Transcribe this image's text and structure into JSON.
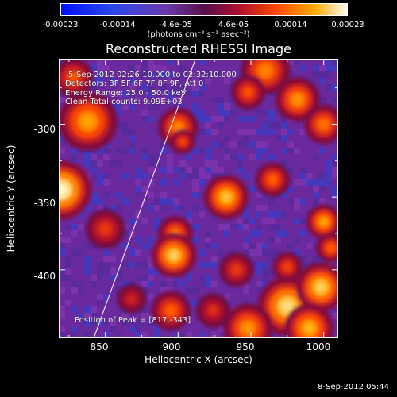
{
  "colorbar": {
    "ticks": [
      "-0.00023",
      "-0.00014",
      "-4.6e-05",
      "4.6e-05",
      "0.00014",
      "0.00023"
    ],
    "units": "(photons cm⁻² s⁻¹ asec⁻²)"
  },
  "chart_data": {
    "type": "heatmap",
    "title": "Reconstructed RHESSI Image",
    "xlabel": "Heliocentric X (arcsec)",
    "ylabel": "Heliocentric Y (arcsec)",
    "xlim": [
      818,
      1010
    ],
    "ylim": [
      -447,
      -255
    ],
    "x_ticks": [
      "850",
      "900",
      "950",
      "1000"
    ],
    "y_ticks": [
      "-300",
      "-350",
      "-400"
    ],
    "colorbar_range": [
      -0.00023,
      0.00023
    ],
    "annotations": {
      "time": "5-Sep-2012 02:26:10.000 to 02:32:10.000",
      "detectors": "Detectors: 3F 5F 6F 7F 8F 9F, Att 0",
      "energy": "Energy Range: 25.0 - 50.0 keV",
      "clean": "Clean    Total counts: 9.09E+03",
      "peak": "Position of Peak = [817,-343]"
    },
    "limb_line": [
      [
        842,
        -447
      ],
      [
        912,
        -255
      ]
    ],
    "sources": [
      {
        "x": 820,
        "y": -345,
        "r": 12,
        "v": 0.00023
      },
      {
        "x": 838,
        "y": -298,
        "r": 12,
        "v": 0.00017
      },
      {
        "x": 828,
        "y": -268,
        "r": 8,
        "v": 0.00012
      },
      {
        "x": 850,
        "y": -372,
        "r": 8,
        "v": 0.0001
      },
      {
        "x": 900,
        "y": -302,
        "r": 8,
        "v": 0.00015
      },
      {
        "x": 903,
        "y": -312,
        "r": 5,
        "v": 0.00011
      },
      {
        "x": 933,
        "y": -350,
        "r": 9,
        "v": 0.00019
      },
      {
        "x": 898,
        "y": -375,
        "r": 7,
        "v": 0.00014
      },
      {
        "x": 897,
        "y": -390,
        "r": 9,
        "v": 0.0002
      },
      {
        "x": 895,
        "y": -428,
        "r": 8,
        "v": 0.00013
      },
      {
        "x": 960,
        "y": -263,
        "r": 10,
        "v": 0.00015
      },
      {
        "x": 948,
        "y": -278,
        "r": 7,
        "v": 0.00012
      },
      {
        "x": 982,
        "y": -283,
        "r": 9,
        "v": 0.00016
      },
      {
        "x": 1000,
        "y": -300,
        "r": 8,
        "v": 0.00014
      },
      {
        "x": 965,
        "y": -338,
        "r": 7,
        "v": 0.00013
      },
      {
        "x": 940,
        "y": -400,
        "r": 7,
        "v": 0.0001
      },
      {
        "x": 975,
        "y": -398,
        "r": 6,
        "v": 0.00011
      },
      {
        "x": 1000,
        "y": -367,
        "r": 7,
        "v": 0.00017
      },
      {
        "x": 1005,
        "y": -385,
        "r": 6,
        "v": 0.00013
      },
      {
        "x": 975,
        "y": -425,
        "r": 12,
        "v": 0.00021
      },
      {
        "x": 948,
        "y": -440,
        "r": 10,
        "v": 0.00016
      },
      {
        "x": 998,
        "y": -412,
        "r": 10,
        "v": 0.0002
      },
      {
        "x": 990,
        "y": -440,
        "r": 10,
        "v": 0.00018
      },
      {
        "x": 868,
        "y": -420,
        "r": 6,
        "v": 8e-05
      },
      {
        "x": 924,
        "y": -428,
        "r": 7,
        "v": 9e-05
      }
    ]
  },
  "footer": {
    "timestamp": "8-Sep-2012 05:44"
  },
  "colors": {
    "background": "#000000",
    "field_base": "#6a2a9e",
    "negative": "#1e3cd8",
    "hot": "#ff6a00",
    "peak": "#fff8b0"
  }
}
